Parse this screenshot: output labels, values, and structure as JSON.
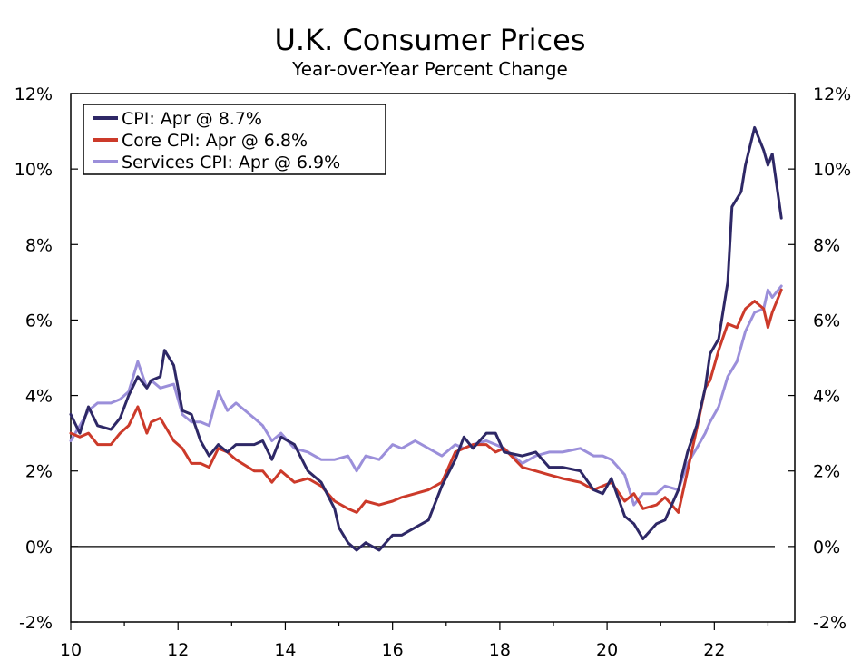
{
  "chart_data": {
    "type": "line",
    "title": "U.K. Consumer Prices",
    "subtitle": "Year-over-Year Percent Change",
    "xlim": [
      2010,
      2023.5
    ],
    "ylim": [
      -2,
      12
    ],
    "x_ticks": [
      2010,
      2012,
      2014,
      2016,
      2018,
      2020,
      2022
    ],
    "x_tick_labels": [
      "10",
      "12",
      "14",
      "16",
      "18",
      "20",
      "22"
    ],
    "y_ticks": [
      -2,
      0,
      2,
      4,
      6,
      8,
      10,
      12
    ],
    "y_tick_labels": [
      "-2%",
      "0%",
      "2%",
      "4%",
      "6%",
      "8%",
      "10%",
      "12%"
    ],
    "legend_position": "top-left",
    "zero_line": true,
    "series": [
      {
        "name": "CPI: Apr @ 8.7%",
        "color": "#2e2866",
        "points": [
          [
            2010.0,
            3.5
          ],
          [
            2010.17,
            3.0
          ],
          [
            2010.33,
            3.7
          ],
          [
            2010.5,
            3.2
          ],
          [
            2010.75,
            3.1
          ],
          [
            2010.92,
            3.4
          ],
          [
            2011.08,
            4.0
          ],
          [
            2011.25,
            4.5
          ],
          [
            2011.42,
            4.2
          ],
          [
            2011.5,
            4.4
          ],
          [
            2011.67,
            4.5
          ],
          [
            2011.75,
            5.2
          ],
          [
            2011.92,
            4.8
          ],
          [
            2012.08,
            3.6
          ],
          [
            2012.25,
            3.5
          ],
          [
            2012.42,
            2.8
          ],
          [
            2012.58,
            2.4
          ],
          [
            2012.75,
            2.7
          ],
          [
            2012.92,
            2.5
          ],
          [
            2013.08,
            2.7
          ],
          [
            2013.42,
            2.7
          ],
          [
            2013.58,
            2.8
          ],
          [
            2013.75,
            2.3
          ],
          [
            2013.92,
            2.9
          ],
          [
            2014.17,
            2.7
          ],
          [
            2014.42,
            2.0
          ],
          [
            2014.67,
            1.7
          ],
          [
            2014.92,
            1.0
          ],
          [
            2015.0,
            0.5
          ],
          [
            2015.17,
            0.1
          ],
          [
            2015.33,
            -0.1
          ],
          [
            2015.5,
            0.1
          ],
          [
            2015.75,
            -0.1
          ],
          [
            2016.0,
            0.3
          ],
          [
            2016.17,
            0.3
          ],
          [
            2016.42,
            0.5
          ],
          [
            2016.67,
            0.7
          ],
          [
            2016.92,
            1.6
          ],
          [
            2017.17,
            2.3
          ],
          [
            2017.33,
            2.9
          ],
          [
            2017.5,
            2.6
          ],
          [
            2017.75,
            3.0
          ],
          [
            2017.92,
            3.0
          ],
          [
            2018.08,
            2.5
          ],
          [
            2018.42,
            2.4
          ],
          [
            2018.67,
            2.5
          ],
          [
            2018.92,
            2.1
          ],
          [
            2019.17,
            2.1
          ],
          [
            2019.5,
            2.0
          ],
          [
            2019.75,
            1.5
          ],
          [
            2019.92,
            1.4
          ],
          [
            2020.08,
            1.8
          ],
          [
            2020.33,
            0.8
          ],
          [
            2020.5,
            0.6
          ],
          [
            2020.67,
            0.2
          ],
          [
            2020.92,
            0.6
          ],
          [
            2021.08,
            0.7
          ],
          [
            2021.33,
            1.5
          ],
          [
            2021.5,
            2.5
          ],
          [
            2021.67,
            3.2
          ],
          [
            2021.83,
            4.2
          ],
          [
            2021.92,
            5.1
          ],
          [
            2022.08,
            5.5
          ],
          [
            2022.25,
            7.0
          ],
          [
            2022.33,
            9.0
          ],
          [
            2022.5,
            9.4
          ],
          [
            2022.58,
            10.1
          ],
          [
            2022.75,
            11.1
          ],
          [
            2022.92,
            10.5
          ],
          [
            2023.0,
            10.1
          ],
          [
            2023.08,
            10.4
          ],
          [
            2023.25,
            8.7
          ]
        ]
      },
      {
        "name": "Core CPI: Apr @ 6.8%",
        "color": "#cc3a2a",
        "points": [
          [
            2010.0,
            3.0
          ],
          [
            2010.17,
            2.9
          ],
          [
            2010.33,
            3.0
          ],
          [
            2010.5,
            2.7
          ],
          [
            2010.75,
            2.7
          ],
          [
            2010.92,
            3.0
          ],
          [
            2011.08,
            3.2
          ],
          [
            2011.25,
            3.7
          ],
          [
            2011.42,
            3.0
          ],
          [
            2011.5,
            3.3
          ],
          [
            2011.67,
            3.4
          ],
          [
            2011.92,
            2.8
          ],
          [
            2012.08,
            2.6
          ],
          [
            2012.25,
            2.2
          ],
          [
            2012.42,
            2.2
          ],
          [
            2012.58,
            2.1
          ],
          [
            2012.75,
            2.6
          ],
          [
            2012.92,
            2.5
          ],
          [
            2013.08,
            2.3
          ],
          [
            2013.42,
            2.0
          ],
          [
            2013.58,
            2.0
          ],
          [
            2013.75,
            1.7
          ],
          [
            2013.92,
            2.0
          ],
          [
            2014.17,
            1.7
          ],
          [
            2014.42,
            1.8
          ],
          [
            2014.67,
            1.6
          ],
          [
            2014.92,
            1.2
          ],
          [
            2015.17,
            1.0
          ],
          [
            2015.33,
            0.9
          ],
          [
            2015.5,
            1.2
          ],
          [
            2015.75,
            1.1
          ],
          [
            2016.0,
            1.2
          ],
          [
            2016.17,
            1.3
          ],
          [
            2016.42,
            1.4
          ],
          [
            2016.67,
            1.5
          ],
          [
            2016.92,
            1.7
          ],
          [
            2017.17,
            2.5
          ],
          [
            2017.33,
            2.6
          ],
          [
            2017.5,
            2.7
          ],
          [
            2017.75,
            2.7
          ],
          [
            2017.92,
            2.5
          ],
          [
            2018.08,
            2.6
          ],
          [
            2018.42,
            2.1
          ],
          [
            2018.67,
            2.0
          ],
          [
            2018.92,
            1.9
          ],
          [
            2019.17,
            1.8
          ],
          [
            2019.5,
            1.7
          ],
          [
            2019.75,
            1.5
          ],
          [
            2019.92,
            1.6
          ],
          [
            2020.08,
            1.7
          ],
          [
            2020.33,
            1.2
          ],
          [
            2020.5,
            1.4
          ],
          [
            2020.67,
            1.0
          ],
          [
            2020.92,
            1.1
          ],
          [
            2021.08,
            1.3
          ],
          [
            2021.33,
            0.9
          ],
          [
            2021.5,
            2.0
          ],
          [
            2021.67,
            3.1
          ],
          [
            2021.83,
            4.2
          ],
          [
            2021.92,
            4.4
          ],
          [
            2022.08,
            5.2
          ],
          [
            2022.25,
            5.9
          ],
          [
            2022.42,
            5.8
          ],
          [
            2022.58,
            6.3
          ],
          [
            2022.75,
            6.5
          ],
          [
            2022.92,
            6.3
          ],
          [
            2023.0,
            5.8
          ],
          [
            2023.08,
            6.2
          ],
          [
            2023.25,
            6.8
          ]
        ]
      },
      {
        "name": "Services CPI: Apr @ 6.9%",
        "color": "#9b8fda",
        "points": [
          [
            2010.0,
            2.8
          ],
          [
            2010.17,
            3.2
          ],
          [
            2010.33,
            3.6
          ],
          [
            2010.5,
            3.8
          ],
          [
            2010.75,
            3.8
          ],
          [
            2010.92,
            3.9
          ],
          [
            2011.08,
            4.1
          ],
          [
            2011.25,
            4.9
          ],
          [
            2011.42,
            4.2
          ],
          [
            2011.5,
            4.4
          ],
          [
            2011.67,
            4.2
          ],
          [
            2011.92,
            4.3
          ],
          [
            2012.08,
            3.5
          ],
          [
            2012.25,
            3.3
          ],
          [
            2012.42,
            3.3
          ],
          [
            2012.58,
            3.2
          ],
          [
            2012.75,
            4.1
          ],
          [
            2012.92,
            3.6
          ],
          [
            2013.08,
            3.8
          ],
          [
            2013.42,
            3.4
          ],
          [
            2013.58,
            3.2
          ],
          [
            2013.75,
            2.8
          ],
          [
            2013.92,
            3.0
          ],
          [
            2014.17,
            2.6
          ],
          [
            2014.42,
            2.5
          ],
          [
            2014.67,
            2.3
          ],
          [
            2014.92,
            2.3
          ],
          [
            2015.17,
            2.4
          ],
          [
            2015.33,
            2.0
          ],
          [
            2015.5,
            2.4
          ],
          [
            2015.75,
            2.3
          ],
          [
            2016.0,
            2.7
          ],
          [
            2016.17,
            2.6
          ],
          [
            2016.42,
            2.8
          ],
          [
            2016.67,
            2.6
          ],
          [
            2016.92,
            2.4
          ],
          [
            2017.17,
            2.7
          ],
          [
            2017.33,
            2.6
          ],
          [
            2017.5,
            2.7
          ],
          [
            2017.75,
            2.8
          ],
          [
            2017.92,
            2.7
          ],
          [
            2018.08,
            2.6
          ],
          [
            2018.42,
            2.2
          ],
          [
            2018.67,
            2.4
          ],
          [
            2018.92,
            2.5
          ],
          [
            2019.17,
            2.5
          ],
          [
            2019.5,
            2.6
          ],
          [
            2019.75,
            2.4
          ],
          [
            2019.92,
            2.4
          ],
          [
            2020.08,
            2.3
          ],
          [
            2020.33,
            1.9
          ],
          [
            2020.5,
            1.1
          ],
          [
            2020.67,
            1.4
          ],
          [
            2020.92,
            1.4
          ],
          [
            2021.08,
            1.6
          ],
          [
            2021.33,
            1.5
          ],
          [
            2021.5,
            2.2
          ],
          [
            2021.67,
            2.6
          ],
          [
            2021.83,
            3.0
          ],
          [
            2021.92,
            3.3
          ],
          [
            2022.08,
            3.7
          ],
          [
            2022.25,
            4.5
          ],
          [
            2022.42,
            4.9
          ],
          [
            2022.58,
            5.7
          ],
          [
            2022.75,
            6.2
          ],
          [
            2022.92,
            6.3
          ],
          [
            2023.0,
            6.8
          ],
          [
            2023.08,
            6.6
          ],
          [
            2023.25,
            6.9
          ]
        ]
      }
    ]
  }
}
